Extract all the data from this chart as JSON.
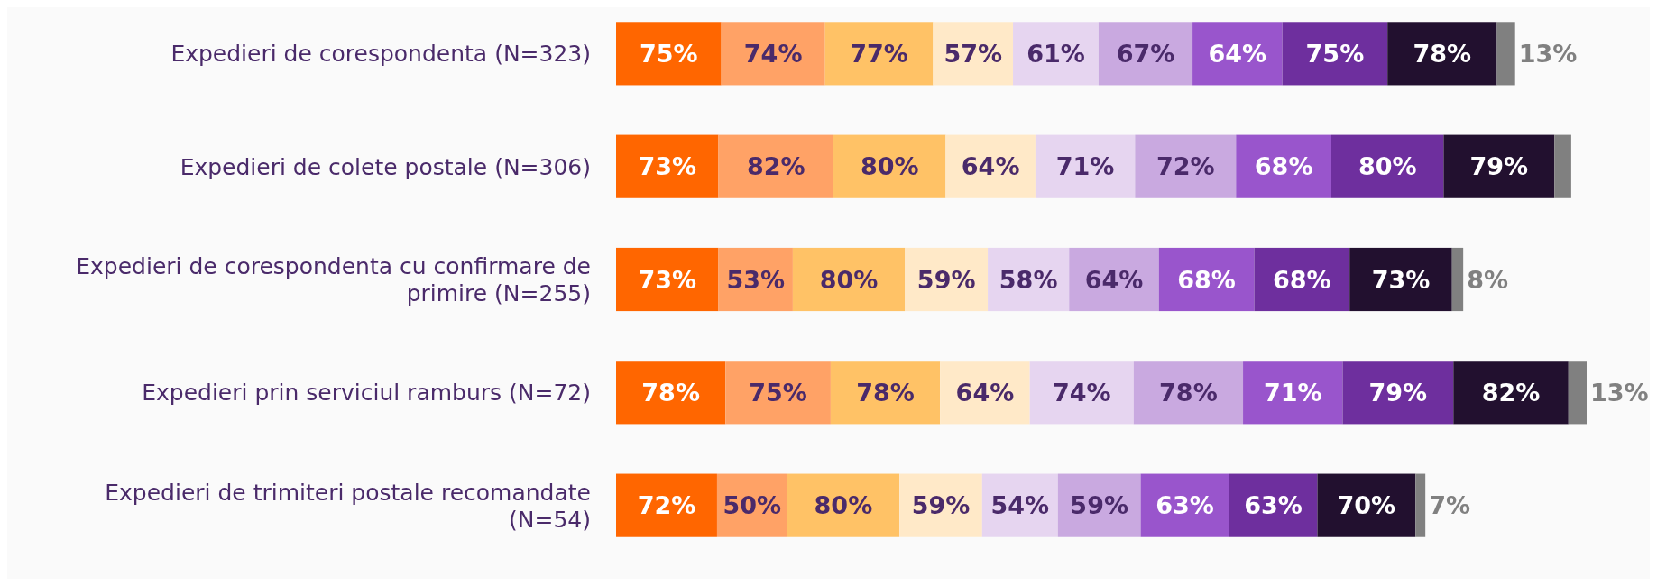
{
  "chart_data": {
    "type": "bar",
    "orientation": "horizontal",
    "stacked": true,
    "categories": [
      "Expedieri de corespondenta (N=323)",
      "Expedieri de colete postale (N=306)",
      "Expedieri de corespondenta cu confirmare de primire (N=255)",
      "Expedieri prin serviciul ramburs (N=72)",
      "Expedieri de trimiteri postale recomandate (N=54)"
    ],
    "series": [
      {
        "color": "#ff6600",
        "values": [
          75,
          73,
          73,
          78,
          72
        ],
        "value_labels": [
          "75%",
          "73%",
          "73%",
          "78%",
          "72%"
        ]
      },
      {
        "color": "#ffa266",
        "values": [
          74,
          82,
          53,
          75,
          50
        ],
        "value_labels": [
          "74%",
          "82%",
          "53%",
          "75%",
          "50%"
        ]
      },
      {
        "color": "#ffc266",
        "values": [
          77,
          80,
          80,
          78,
          80
        ],
        "value_labels": [
          "77%",
          "80%",
          "80%",
          "78%",
          "80%"
        ]
      },
      {
        "color": "#ffe9c8",
        "values": [
          57,
          64,
          59,
          64,
          59
        ],
        "value_labels": [
          "57%",
          "64%",
          "59%",
          "64%",
          "59%"
        ]
      },
      {
        "color": "#e6d5f0",
        "values": [
          61,
          71,
          58,
          74,
          54
        ],
        "value_labels": [
          "61%",
          "71%",
          "58%",
          "74%",
          "54%"
        ]
      },
      {
        "color": "#c9a9e0",
        "values": [
          67,
          72,
          64,
          78,
          59
        ],
        "value_labels": [
          "67%",
          "72%",
          "64%",
          "78%",
          "59%"
        ]
      },
      {
        "color": "#9955cc",
        "values": [
          64,
          68,
          68,
          71,
          63
        ],
        "value_labels": [
          "64%",
          "68%",
          "68%",
          "71%",
          "63%"
        ]
      },
      {
        "color": "#6e2f9e",
        "values": [
          75,
          80,
          68,
          79,
          63
        ],
        "value_labels": [
          "75%",
          "80%",
          "68%",
          "79%",
          "63%"
        ]
      },
      {
        "color": "#22102f",
        "values": [
          78,
          79,
          73,
          82,
          70
        ],
        "value_labels": [
          "78%",
          "79%",
          "73%",
          "82%",
          "70%"
        ]
      },
      {
        "color": "#808080",
        "values": [
          13,
          12,
          8,
          13,
          7
        ],
        "value_labels": [
          "13%",
          null,
          "8%",
          "13%",
          "7%"
        ]
      }
    ]
  }
}
